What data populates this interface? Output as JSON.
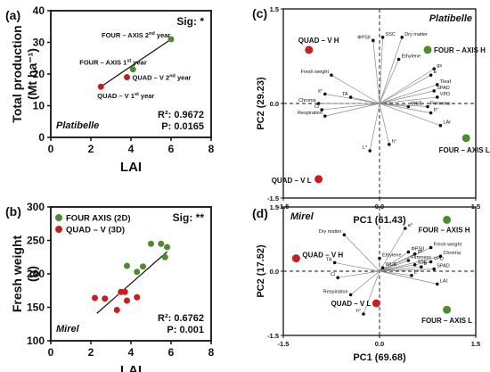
{
  "colors": {
    "green": "#4f8a2e",
    "red": "#c81e1e",
    "orange": "#e07b20",
    "black": "#111111"
  },
  "chart_data": [
    {
      "type": "scatter",
      "panel": "(a)",
      "xlabel": "LAI",
      "ylabel": "Total production (Mt ha⁻¹)",
      "xlim": [
        0,
        8
      ],
      "ylim": [
        0,
        40
      ],
      "xticks": [
        0,
        2,
        4,
        6,
        8
      ],
      "yticks": [
        0,
        10,
        20,
        30,
        40
      ],
      "sig": "Sig: *",
      "site": "Platibelle",
      "stats": [
        "R²: 0.9672",
        "P: 0.0165"
      ],
      "points": [
        {
          "label": "FOUR – AXIS 2nd year",
          "x": 6.0,
          "y": 31,
          "color": "green"
        },
        {
          "label": "FOUR – AXIS 1st year",
          "x": 4.1,
          "y": 21.5,
          "color": "green"
        },
        {
          "label": "QUAD – V 2nd year",
          "x": 3.8,
          "y": 19,
          "color": "red"
        },
        {
          "label": "QUAD – V 1st year",
          "x": 2.5,
          "y": 16,
          "color": "red"
        }
      ],
      "fit": [
        [
          2.5,
          16
        ],
        [
          6.0,
          31
        ]
      ]
    },
    {
      "type": "scatter",
      "panel": "(b)",
      "xlabel": "LAI",
      "ylabel": "Fresh weight (g)",
      "xlim": [
        0,
        8
      ],
      "ylim": [
        100,
        300
      ],
      "xticks": [
        0,
        2,
        4,
        6,
        8
      ],
      "yticks": [
        100,
        150,
        200,
        250,
        300
      ],
      "sig": "Sig: **",
      "site": "Mirel",
      "stats": [
        "R²: 0.6762",
        "P: 0.001"
      ],
      "legend": [
        "FOUR AXIS (2D)",
        "QUAD – V (3D)"
      ],
      "series": [
        {
          "name": "FOUR AXIS (2D)",
          "color": "green",
          "x": [
            3.8,
            4.3,
            4.6,
            5.0,
            5.5,
            5.8,
            5.7
          ],
          "y": [
            212,
            203,
            211,
            245,
            245,
            240,
            225
          ]
        },
        {
          "name": "QUAD – V (3D)",
          "color": "red",
          "x": [
            2.2,
            2.7,
            3.3,
            3.5,
            3.7,
            3.8,
            4.3
          ],
          "y": [
            164,
            163,
            146,
            173,
            173,
            160,
            165
          ]
        }
      ],
      "fit": [
        [
          2.3,
          141
        ],
        [
          5.8,
          233
        ]
      ]
    },
    {
      "type": "biplot",
      "panel": "(c)",
      "xlabel": "PC1 (61.43)",
      "ylabel": "PC2 (29.23)",
      "xlim": [
        -1.5,
        1.5
      ],
      "ylim": [
        -1.5,
        1.5
      ],
      "xticks": [
        -1.5,
        0.0,
        1.5
      ],
      "yticks": [
        -1.5,
        0.0,
        1.5
      ],
      "site": "Platibelle",
      "variables": [
        {
          "label": "SSC",
          "x": 0.05,
          "y": 1.05
        },
        {
          "label": "Dry matter",
          "x": 0.35,
          "y": 1.05
        },
        {
          "label": "ΦPSII",
          "x": -0.1,
          "y": 1.0
        },
        {
          "label": "Fresh weight",
          "x": -0.75,
          "y": 0.45
        },
        {
          "label": "Ethylene",
          "x": 0.3,
          "y": 0.7
        },
        {
          "label": "gs",
          "x": 0.85,
          "y": 0.55
        },
        {
          "label": "E",
          "x": 0.8,
          "y": 0.45
        },
        {
          "label": "Tleaf",
          "x": 0.9,
          "y": 0.3
        },
        {
          "label": "SPAD",
          "x": 0.85,
          "y": 0.2
        },
        {
          "label": "VPD",
          "x": 0.9,
          "y": 0.1
        },
        {
          "label": "a*",
          "x": -0.85,
          "y": 0.15
        },
        {
          "label": "Chroma",
          "x": -0.95,
          "y": 0.0
        },
        {
          "label": "Ci",
          "x": -0.9,
          "y": -0.1
        },
        {
          "label": "Respiration",
          "x": -0.85,
          "y": -0.2
        },
        {
          "label": "TA",
          "x": -0.45,
          "y": 0.1
        },
        {
          "label": "WUE",
          "x": 0.45,
          "y": -0.05
        },
        {
          "label": "Firmness",
          "x": 0.75,
          "y": -0.05
        },
        {
          "label": "b*",
          "x": 0.8,
          "y": -0.15
        },
        {
          "label": "LAI",
          "x": 0.95,
          "y": -0.35
        },
        {
          "label": "L*",
          "x": -0.15,
          "y": -0.75
        },
        {
          "label": "h°",
          "x": 0.15,
          "y": -0.65
        }
      ],
      "groups": [
        {
          "label": "QUAD – V H",
          "x": -1.1,
          "y": 0.85,
          "color": "red"
        },
        {
          "label": "FOUR – AXIS H",
          "x": 0.75,
          "y": 0.85,
          "color": "green"
        },
        {
          "label": "FOUR – AXIS L",
          "x": 1.35,
          "y": -0.55,
          "color": "green"
        },
        {
          "label": "QUAD – V L",
          "x": -0.95,
          "y": -1.2,
          "color": "red"
        }
      ]
    },
    {
      "type": "biplot",
      "panel": "(d)",
      "xlabel": "PC1 (69.68)",
      "ylabel": "PC2 (17.52)",
      "xlim": [
        -1.5,
        1.5
      ],
      "ylim": [
        -1.5,
        1.5
      ],
      "xticks": [
        -1.5,
        0.0,
        1.5
      ],
      "yticks": [
        -1.5,
        0.0,
        1.5
      ],
      "site": "Mirel",
      "variables": [
        {
          "label": "Dry matter",
          "x": -0.55,
          "y": 0.85
        },
        {
          "label": "a*",
          "x": 0.4,
          "y": 1.0
        },
        {
          "label": "Fresh weight",
          "x": 0.8,
          "y": 0.55
        },
        {
          "label": "ΦPSII",
          "x": 0.45,
          "y": 0.45
        },
        {
          "label": "gs",
          "x": 0.55,
          "y": 0.4
        },
        {
          "label": "Chroma",
          "x": 0.95,
          "y": 0.35
        },
        {
          "label": "Ethylene",
          "x": 0.0,
          "y": 0.3
        },
        {
          "label": "Firmness",
          "x": 0.45,
          "y": 0.25
        },
        {
          "label": "VPD",
          "x": 0.8,
          "y": 0.22
        },
        {
          "label": "SSC",
          "x": 0.55,
          "y": 0.15
        },
        {
          "label": "E",
          "x": 0.65,
          "y": 0.1
        },
        {
          "label": "SPAD",
          "x": 0.85,
          "y": 0.05
        },
        {
          "label": "WUE",
          "x": 0.05,
          "y": 0.08
        },
        {
          "label": "TA",
          "x": -0.7,
          "y": 0.2
        },
        {
          "label": "Ci",
          "x": -0.65,
          "y": -0.15
        },
        {
          "label": "L*",
          "x": 0.5,
          "y": -0.1
        },
        {
          "label": "LAI",
          "x": 0.9,
          "y": -0.3
        },
        {
          "label": "Respiration",
          "x": -0.45,
          "y": -0.55
        },
        {
          "label": "h°",
          "x": -0.25,
          "y": -1.0
        }
      ],
      "groups": [
        {
          "label": "FOUR – AXIS H",
          "x": 1.05,
          "y": 1.2,
          "color": "green"
        },
        {
          "label": "QUAD – V H",
          "x": -1.3,
          "y": 0.3,
          "color": "red"
        },
        {
          "label": "QUAD – V L",
          "x": -0.05,
          "y": -0.75,
          "color": "red"
        },
        {
          "label": "FOUR – AXIS L",
          "x": 1.05,
          "y": -0.9,
          "color": "green"
        }
      ]
    }
  ]
}
